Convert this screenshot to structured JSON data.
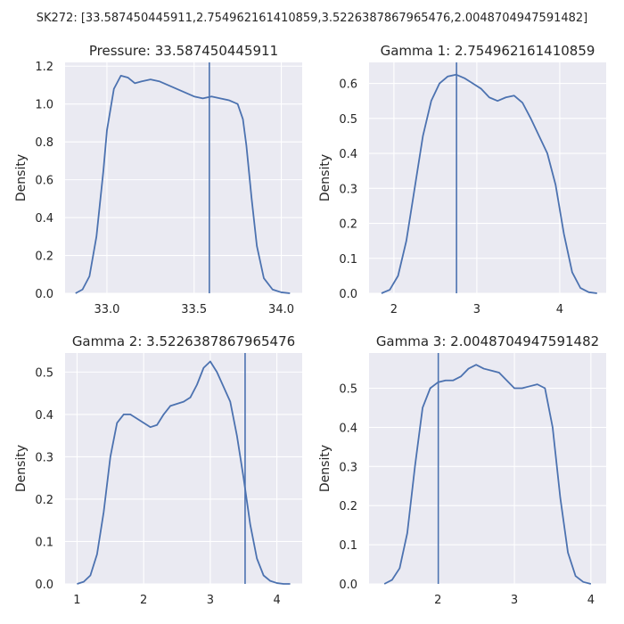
{
  "figure": {
    "suptitle": "SK272: [33.587450445911,2.754962161410859,3.5226387867965476,2.0048704947591482]"
  },
  "colors": {
    "line": "#4c72b0",
    "panel_background": "#eaeaf2",
    "grid": "#ffffff"
  },
  "chart_data": [
    {
      "type": "line",
      "title": "Pressure: 33.587450445911",
      "xlabel": "",
      "ylabel": "Density",
      "xlim": [
        32.76,
        34.12
      ],
      "ylim": [
        0,
        1.22
      ],
      "xticks": [
        33.0,
        33.5,
        34.0
      ],
      "xtick_labels": [
        "33.0",
        "33.5",
        "34.0"
      ],
      "yticks": [
        0,
        0.2,
        0.4,
        0.6,
        0.8,
        1.0,
        1.2
      ],
      "ytick_labels": [
        "0.0",
        "0.2",
        "0.4",
        "0.6",
        "0.8",
        "1.0",
        "1.2"
      ],
      "grid": true,
      "vline": 33.587450445911,
      "series": [
        {
          "x": [
            32.82,
            32.86,
            32.9,
            32.94,
            32.98,
            33.0,
            33.04,
            33.08,
            33.12,
            33.16,
            33.2,
            33.25,
            33.3,
            33.35,
            33.4,
            33.45,
            33.5,
            33.55,
            33.6,
            33.65,
            33.7,
            33.75,
            33.78,
            33.8,
            33.83,
            33.86,
            33.9,
            33.95,
            34.0,
            34.05
          ],
          "y": [
            0.0,
            0.02,
            0.09,
            0.3,
            0.65,
            0.86,
            1.08,
            1.15,
            1.14,
            1.11,
            1.12,
            1.13,
            1.12,
            1.1,
            1.08,
            1.06,
            1.04,
            1.03,
            1.04,
            1.03,
            1.02,
            1.0,
            0.92,
            0.78,
            0.5,
            0.25,
            0.08,
            0.02,
            0.005,
            0.0
          ]
        }
      ]
    },
    {
      "type": "line",
      "title": "Gamma 1: 2.754962161410859",
      "xlabel": "",
      "ylabel": "Density",
      "xlim": [
        1.7,
        4.56
      ],
      "ylim": [
        0,
        0.66
      ],
      "xticks": [
        2,
        3,
        4
      ],
      "xtick_labels": [
        "2",
        "3",
        "4"
      ],
      "yticks": [
        0,
        0.1,
        0.2,
        0.3,
        0.4,
        0.5,
        0.6
      ],
      "ytick_labels": [
        "0.0",
        "0.1",
        "0.2",
        "0.3",
        "0.4",
        "0.5",
        "0.6"
      ],
      "grid": true,
      "vline": 2.754962161410859,
      "series": [
        {
          "x": [
            1.85,
            1.95,
            2.05,
            2.15,
            2.25,
            2.35,
            2.45,
            2.55,
            2.65,
            2.75,
            2.85,
            2.95,
            3.05,
            3.15,
            3.25,
            3.35,
            3.45,
            3.55,
            3.65,
            3.75,
            3.85,
            3.95,
            4.05,
            4.15,
            4.25,
            4.35,
            4.45
          ],
          "y": [
            0.0,
            0.01,
            0.05,
            0.15,
            0.3,
            0.45,
            0.55,
            0.6,
            0.62,
            0.625,
            0.615,
            0.6,
            0.585,
            0.56,
            0.55,
            0.56,
            0.565,
            0.545,
            0.5,
            0.45,
            0.4,
            0.31,
            0.17,
            0.06,
            0.015,
            0.003,
            0.0
          ]
        }
      ]
    },
    {
      "type": "line",
      "title": "Gamma 2: 3.5226387867965476",
      "xlabel": "",
      "ylabel": "Density",
      "xlim": [
        0.82,
        4.38
      ],
      "ylim": [
        0,
        0.545
      ],
      "xticks": [
        1,
        2,
        3,
        4
      ],
      "xtick_labels": [
        "1",
        "2",
        "3",
        "4"
      ],
      "yticks": [
        0,
        0.1,
        0.2,
        0.3,
        0.4,
        0.5
      ],
      "ytick_labels": [
        "0.0",
        "0.1",
        "0.2",
        "0.3",
        "0.4",
        "0.5"
      ],
      "grid": true,
      "vline": 3.5226387867965476,
      "series": [
        {
          "x": [
            1.0,
            1.1,
            1.2,
            1.3,
            1.4,
            1.5,
            1.6,
            1.7,
            1.8,
            1.9,
            2.0,
            2.1,
            2.2,
            2.3,
            2.4,
            2.5,
            2.6,
            2.7,
            2.8,
            2.9,
            3.0,
            3.1,
            3.2,
            3.3,
            3.4,
            3.5,
            3.6,
            3.7,
            3.8,
            3.9,
            4.0,
            4.1,
            4.2
          ],
          "y": [
            0.0,
            0.005,
            0.02,
            0.07,
            0.17,
            0.3,
            0.38,
            0.4,
            0.4,
            0.39,
            0.38,
            0.37,
            0.375,
            0.4,
            0.42,
            0.425,
            0.43,
            0.44,
            0.47,
            0.51,
            0.525,
            0.5,
            0.465,
            0.43,
            0.35,
            0.25,
            0.14,
            0.06,
            0.02,
            0.007,
            0.002,
            0.0,
            0.0
          ]
        }
      ]
    },
    {
      "type": "line",
      "title": "Gamma 3: 2.0048704947591482",
      "xlabel": "",
      "ylabel": "Density",
      "xlim": [
        1.1,
        4.2
      ],
      "ylim": [
        0,
        0.59
      ],
      "xticks": [
        2,
        3,
        4
      ],
      "xtick_labels": [
        "2",
        "3",
        "4"
      ],
      "yticks": [
        0,
        0.1,
        0.2,
        0.3,
        0.4,
        0.5
      ],
      "ytick_labels": [
        "0.0",
        "0.1",
        "0.2",
        "0.3",
        "0.4",
        "0.5"
      ],
      "grid": true,
      "vline": 2.0048704947591482,
      "series": [
        {
          "x": [
            1.3,
            1.4,
            1.5,
            1.6,
            1.7,
            1.8,
            1.9,
            2.0,
            2.1,
            2.2,
            2.3,
            2.4,
            2.5,
            2.6,
            2.7,
            2.8,
            2.9,
            3.0,
            3.1,
            3.2,
            3.3,
            3.4,
            3.5,
            3.6,
            3.7,
            3.8,
            3.9,
            4.0
          ],
          "y": [
            0.0,
            0.01,
            0.04,
            0.13,
            0.3,
            0.45,
            0.5,
            0.515,
            0.52,
            0.52,
            0.53,
            0.55,
            0.56,
            0.55,
            0.545,
            0.54,
            0.52,
            0.5,
            0.5,
            0.505,
            0.51,
            0.5,
            0.4,
            0.22,
            0.08,
            0.02,
            0.005,
            0.0
          ]
        }
      ]
    }
  ]
}
